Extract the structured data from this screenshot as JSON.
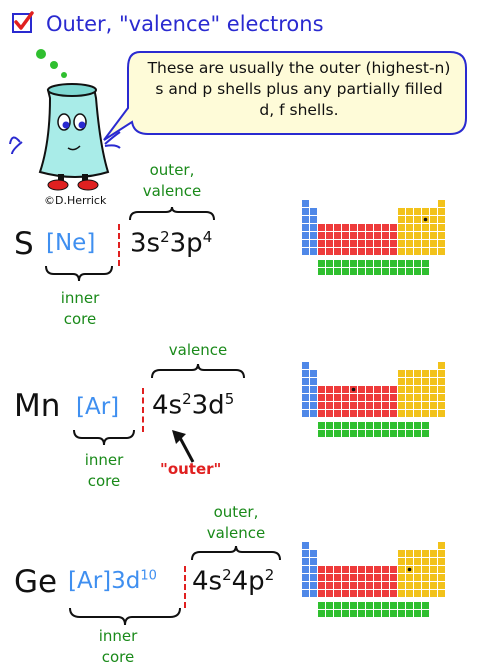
{
  "title": "Outer, \"valence\" electrons",
  "speech_bubble": "These are usually the outer (highest-n) s and p shells plus any partially filled d, f shells.",
  "credit": "©D.Herrick",
  "icons": {
    "check": "checkbox-checked-icon",
    "mascot": "beaker-character",
    "arrow": "up-arrow-icon"
  },
  "colors": {
    "title": "#2a2ad0",
    "green": "#1a8a1a",
    "blue": "#3f8ff0",
    "red": "#e02020",
    "s_block": "#4f88e8",
    "p_block": "#f2c21a",
    "d_block": "#ee3b3b",
    "f_block": "#2fbf2f"
  },
  "examples": [
    {
      "symbol": "S",
      "core": "[Ne]",
      "core_sup": "",
      "outer_label": "outer,\nvalence",
      "inner_label": "inner\ncore",
      "config": [
        {
          "orb": "3s",
          "n": "2"
        },
        {
          "orb": "3p",
          "n": "4"
        }
      ]
    },
    {
      "symbol": "Mn",
      "core": "[Ar]",
      "core_sup": "",
      "outer_label": "valence",
      "inner_label": "inner\ncore",
      "config": [
        {
          "orb": "4s",
          "n": "2"
        },
        {
          "orb": "3d",
          "n": "5"
        }
      ],
      "annotation": "\"outer\""
    },
    {
      "symbol": "Ge",
      "core": "[Ar]3d",
      "core_sup": "10",
      "outer_label": "outer,\nvalence",
      "inner_label": "inner\ncore",
      "config": [
        {
          "orb": "4s",
          "n": "2"
        },
        {
          "orb": "4p",
          "n": "2"
        }
      ]
    }
  ]
}
